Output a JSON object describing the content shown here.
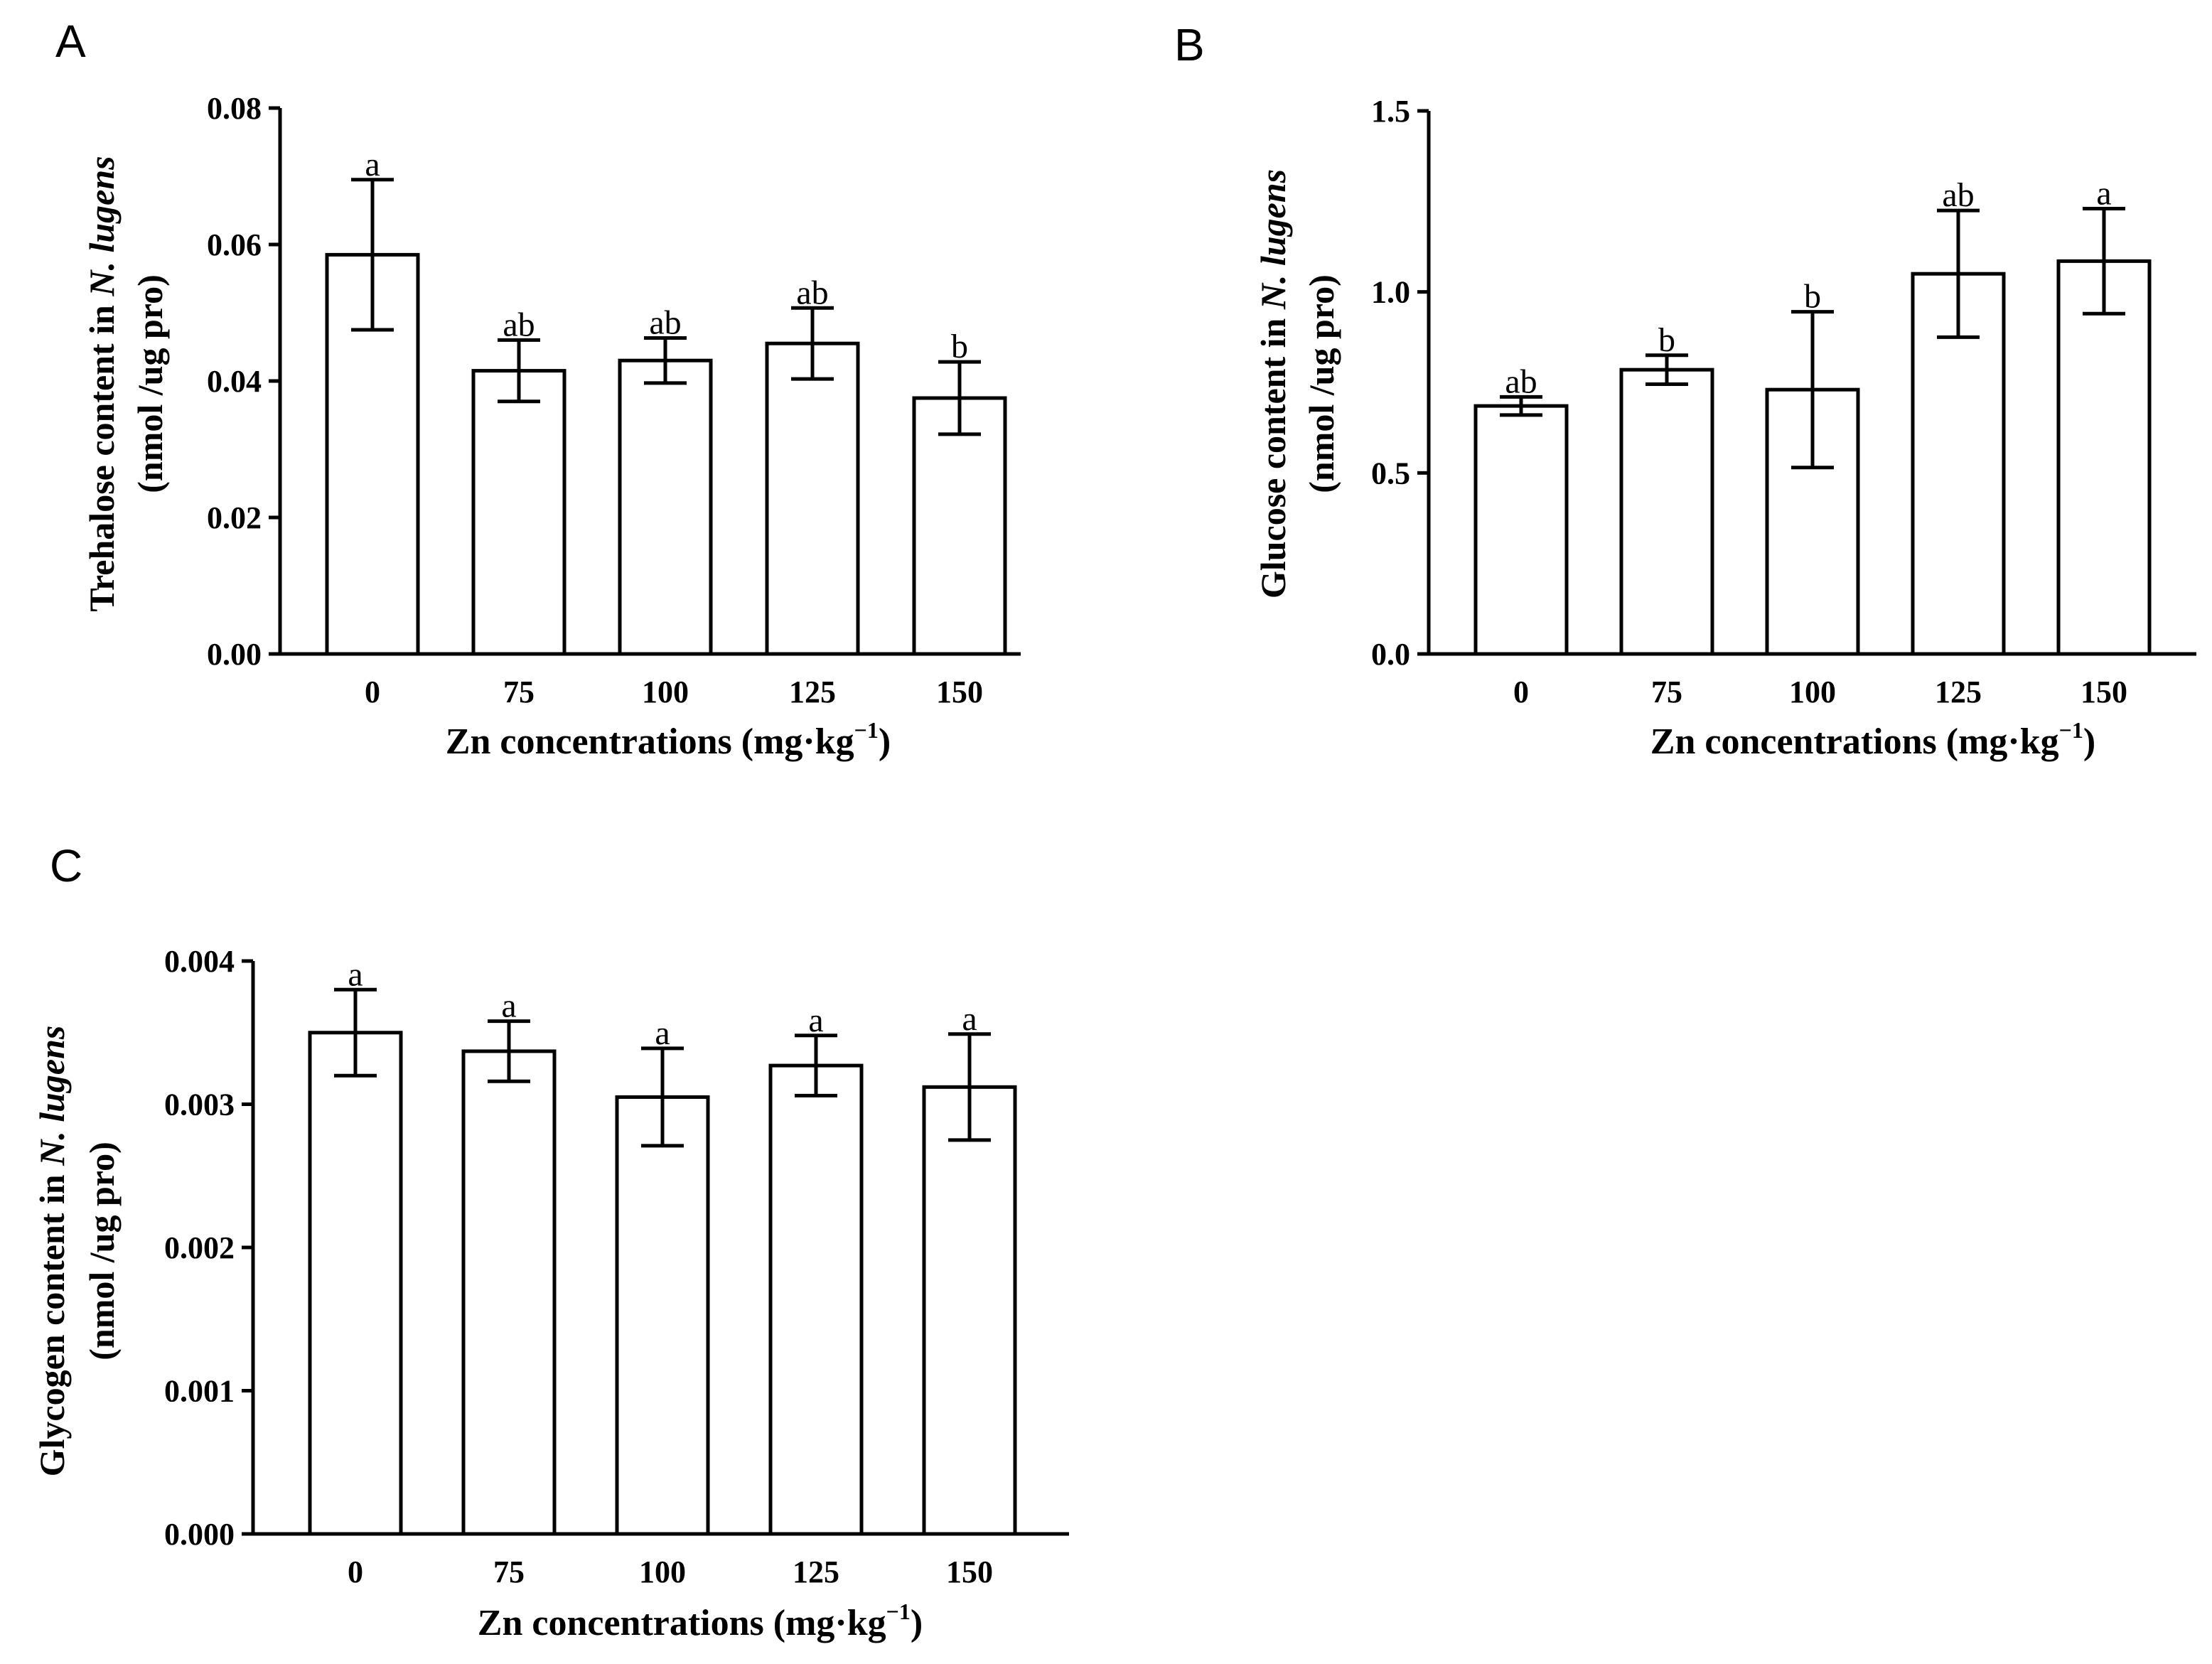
{
  "chart_data": [
    {
      "id": "A",
      "type": "bar",
      "panel_label": "A",
      "categories": [
        "0",
        "75",
        "100",
        "125",
        "150"
      ],
      "values": [
        0.0585,
        0.0415,
        0.043,
        0.0455,
        0.0375
      ],
      "errors": [
        0.011,
        0.0045,
        0.0033,
        0.0052,
        0.0053
      ],
      "significance": [
        "a",
        "ab",
        "ab",
        "ab",
        "b"
      ],
      "yticks": [
        "0.00",
        "0.02",
        "0.04",
        "0.06",
        "0.08"
      ],
      "ylim": [
        0,
        0.08
      ],
      "ylabel_line1_prefix": "Trehalose content in ",
      "ylabel_species": "N. lugens",
      "ylabel_line2": "(nmol /ug pro)",
      "xlabel_main": "Zn concentrations (mg·kg",
      "xlabel_sup": "−1",
      "xlabel_end": ")"
    },
    {
      "id": "B",
      "type": "bar",
      "panel_label": "B",
      "categories": [
        "0",
        "75",
        "100",
        "125",
        "150"
      ],
      "values": [
        0.685,
        0.785,
        0.73,
        1.05,
        1.085
      ],
      "errors": [
        0.025,
        0.04,
        0.215,
        0.175,
        0.145
      ],
      "significance": [
        "ab",
        "b",
        "b",
        "ab",
        "a"
      ],
      "yticks": [
        "0.0",
        "0.5",
        "1.0",
        "1.5"
      ],
      "ylim": [
        0,
        1.5
      ],
      "ylabel_line1_prefix": "Glucose content in ",
      "ylabel_species": "N. lugens",
      "ylabel_line2": "(nmol /ug pro)",
      "xlabel_main": "Zn concentrations (mg·kg",
      "xlabel_sup": "−1",
      "xlabel_end": ")"
    },
    {
      "id": "C",
      "type": "bar",
      "panel_label": "C",
      "categories": [
        "0",
        "75",
        "100",
        "125",
        "150"
      ],
      "values": [
        0.0035,
        0.00337,
        0.00305,
        0.00327,
        0.00312
      ],
      "errors": [
        0.0003,
        0.00021,
        0.00034,
        0.00021,
        0.00037
      ],
      "significance": [
        "a",
        "a",
        "a",
        "a",
        "a"
      ],
      "yticks": [
        "0.000",
        "0.001",
        "0.002",
        "0.003",
        "0.004"
      ],
      "ylim": [
        0,
        0.004
      ],
      "ylabel_line1_prefix": "Glycogen content in ",
      "ylabel_species": "N. lugens",
      "ylabel_line2": "(nmol /ug pro)",
      "xlabel_main": "Zn concentrations (mg·kg",
      "xlabel_sup": "−1",
      "xlabel_end": ")"
    }
  ]
}
